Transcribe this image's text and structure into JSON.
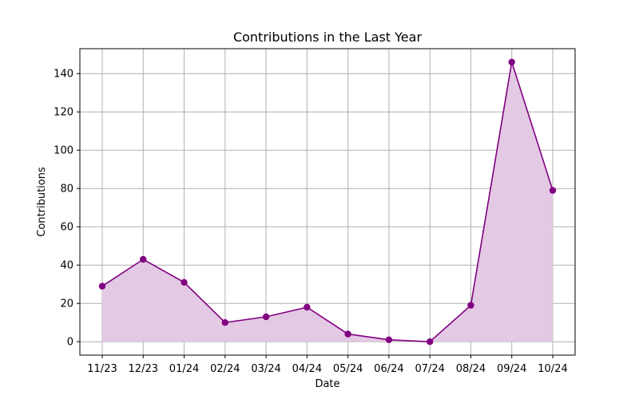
{
  "chart_data": {
    "type": "area",
    "title": "Contributions in the Last Year",
    "xlabel": "Date",
    "ylabel": "Contributions",
    "categories": [
      "11/23",
      "12/23",
      "01/24",
      "02/24",
      "03/24",
      "04/24",
      "05/24",
      "06/24",
      "07/24",
      "08/24",
      "09/24",
      "10/24"
    ],
    "values": [
      29,
      43,
      31,
      10,
      13,
      18,
      4,
      1,
      0,
      19,
      146,
      79
    ],
    "ylim": [
      -7,
      153
    ],
    "yticks": [
      0,
      20,
      40,
      60,
      80,
      100,
      120,
      140
    ],
    "grid": true,
    "line_color": "#800080",
    "fill_color": "#e3c9e3"
  }
}
